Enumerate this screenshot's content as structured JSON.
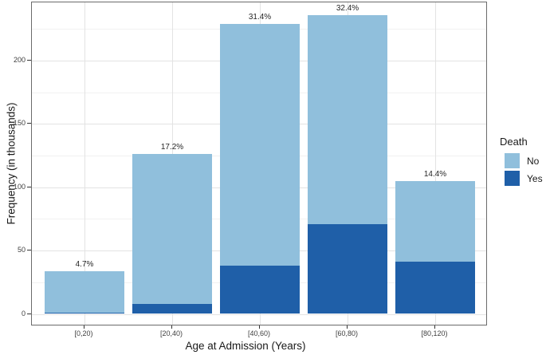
{
  "chart_data": {
    "type": "bar",
    "stacked": true,
    "title": "",
    "xlabel": "Age at Admission (Years)",
    "ylabel": "Frequency (in thousands)",
    "categories": [
      "[0,20)",
      "[20,40)",
      "[40,60)",
      "[60,80)",
      "[80,120)"
    ],
    "series": [
      {
        "name": "Yes",
        "color": "#1F5FA8",
        "values": [
          1,
          8,
          38,
          71,
          41
        ]
      },
      {
        "name": "No",
        "color": "#90BFDC",
        "values": [
          33,
          118,
          191,
          165,
          64
        ]
      }
    ],
    "stack_order_bottom_to_top": [
      "Yes",
      "No"
    ],
    "totals": [
      34,
      126,
      229,
      236,
      105
    ],
    "bar_labels": [
      "4.7%",
      "17.2%",
      "31.4%",
      "32.4%",
      "14.4%"
    ],
    "y_major_ticks": [
      0,
      50,
      100,
      150,
      200
    ],
    "y_minor_ticks": [
      25,
      75,
      125,
      175,
      225
    ],
    "ylim": [
      0,
      246
    ],
    "grid": true,
    "legend": {
      "title": "Death",
      "position": "right",
      "entries": [
        {
          "label": "No",
          "color": "#90BFDC"
        },
        {
          "label": "Yes",
          "color": "#1F5FA8"
        }
      ]
    }
  },
  "style_colors": {
    "no_fill": "#90BFDC",
    "yes_fill": "#1F5FA8",
    "grid_major": "#e3e3e3",
    "grid_minor": "#f1f1f1",
    "panel_border": "#6b6b6b"
  }
}
